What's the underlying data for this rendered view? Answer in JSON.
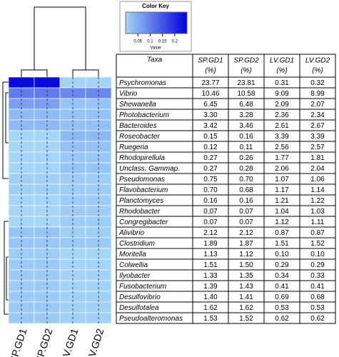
{
  "chart_data": {
    "type": "heatmap",
    "color_key": {
      "title": "Color Key",
      "xlabel": "Value",
      "xlim": [
        0,
        0.25
      ],
      "xticks": [
        0.05,
        0.1,
        0.15,
        0.2
      ],
      "colors": [
        "#a6d6f7",
        "#0000dd"
      ]
    },
    "row_header": "Taxa",
    "unit": "(%)",
    "categories": [
      "Psychromonas",
      "Vibrio",
      "Shewanella",
      "Photobacterium",
      "Bacteroides",
      "Roseobacter",
      "Ruegeria",
      "Rhodopirellula",
      "Unclass. Gammap.",
      "Pseudomonas",
      "Flavobacterium",
      "Planctomyces",
      "Rhodobacter",
      "Congregibacter",
      "Alivibrio",
      "Clostridium",
      "Moritella",
      "Colwellia",
      "Ilyobacter",
      "Fusobacterium",
      "Desulfovibrio",
      "Desulfotalea",
      "Pseudoalteromonas"
    ],
    "series": [
      {
        "name": "SP.GD1",
        "values": [
          23.77,
          10.46,
          6.45,
          3.3,
          3.42,
          0.15,
          0.12,
          0.27,
          0.27,
          0.75,
          0.7,
          0.16,
          0.07,
          0.07,
          2.12,
          1.89,
          1.13,
          1.51,
          1.33,
          1.39,
          1.4,
          1.62,
          1.53
        ],
        "value_labels": [
          "23.77",
          "10.46",
          "6.45",
          "3.30",
          "3.42",
          "0.15",
          "0.12",
          "0.27",
          "0.27",
          "0.75",
          "0.70",
          "0.16",
          "0.07",
          "0.07",
          "2.12",
          "1.89",
          "1.13",
          "1.51",
          "1.33",
          "1.39",
          "1.40",
          "1.62",
          "1.53"
        ]
      },
      {
        "name": "SP.GD2",
        "values": [
          23.81,
          10.58,
          6.48,
          3.28,
          3.46,
          0.16,
          0.11,
          0.26,
          0.28,
          0.7,
          0.68,
          0.16,
          0.07,
          0.07,
          2.12,
          1.87,
          1.12,
          1.5,
          1.35,
          1.43,
          1.41,
          1.62,
          1.52
        ],
        "value_labels": [
          "23.81",
          "10.58",
          "6.48",
          "3.28",
          "3.46",
          "0.16",
          "0.11",
          "0.26",
          "0.28",
          "0.70",
          "0.68",
          "0.16",
          "0.07",
          "0.07",
          "2.12",
          "1.87",
          "1.12",
          "1.50",
          "1.35",
          "1.43",
          "1.41",
          "1.62",
          "1.52"
        ]
      },
      {
        "name": "LV.GD1",
        "values": [
          0.31,
          9.09,
          2.09,
          2.36,
          2.61,
          3.39,
          2.56,
          1.77,
          2.06,
          1.07,
          1.17,
          1.21,
          1.04,
          1.12,
          0.87,
          1.51,
          0.1,
          0.29,
          0.34,
          0.41,
          0.69,
          0.53,
          0.62
        ],
        "value_labels": [
          "0.31",
          "9.09",
          "2.09",
          "2.36",
          "2.61",
          "3.39",
          "2.56",
          "1.77",
          "2.06",
          "1.07",
          "1.17",
          "1.21",
          "1.04",
          "1.12",
          "0.87",
          "1.51",
          "0.10",
          "0.29",
          "0.34",
          "0.41",
          "0.69",
          "0.53",
          "0.62"
        ]
      },
      {
        "name": "LV.GD2",
        "values": [
          0.32,
          8.99,
          2.07,
          2.34,
          2.67,
          3.39,
          2.57,
          1.81,
          2.04,
          1.06,
          1.14,
          1.22,
          1.03,
          1.11,
          0.87,
          1.52,
          0.1,
          0.29,
          0.33,
          0.41,
          0.68,
          0.53,
          0.62
        ],
        "value_labels": [
          "0.32",
          "8.99",
          "2.07",
          "2.34",
          "2.67",
          "3.39",
          "2.57",
          "1.81",
          "2.04",
          "1.06",
          "1.14",
          "1.22",
          "1.03",
          "1.11",
          "0.87",
          "1.52",
          "0.10",
          "0.29",
          "0.33",
          "0.41",
          "0.68",
          "0.53",
          "0.62"
        ]
      }
    ]
  }
}
